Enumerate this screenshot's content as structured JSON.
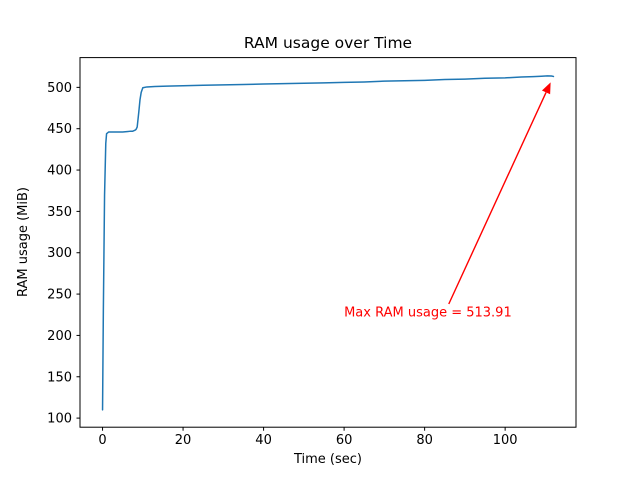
{
  "chart_data": {
    "type": "line",
    "title": "RAM usage over Time",
    "xlabel": "Time (sec)",
    "ylabel": "RAM usage (MiB)",
    "xlim": [
      -5.6,
      117.6
    ],
    "ylim": [
      89,
      536
    ],
    "xticks": [
      0,
      20,
      40,
      60,
      80,
      100
    ],
    "yticks": [
      100,
      150,
      200,
      250,
      300,
      350,
      400,
      450,
      500
    ],
    "grid": false,
    "legend": "none",
    "line_color": "#1f77b4",
    "series": [
      {
        "name": "RAM usage",
        "x": [
          0,
          0.2,
          0.5,
          0.8,
          1.0,
          1.5,
          2,
          3,
          4,
          5,
          6,
          7,
          7.5,
          8,
          8.3,
          8.6,
          9,
          9.3,
          9.6,
          10,
          11,
          13,
          16,
          20,
          25,
          30,
          35,
          40,
          45,
          50,
          55,
          60,
          65,
          70,
          75,
          80,
          85,
          90,
          95,
          100,
          104,
          107,
          109,
          110.5,
          111.5,
          112
        ],
        "y": [
          110,
          230,
          370,
          432,
          444,
          446,
          446,
          446,
          446,
          446,
          446.5,
          447,
          447,
          448,
          449,
          452,
          470,
          485,
          494,
          499.5,
          500.5,
          501,
          501.5,
          502,
          502.5,
          503,
          503.5,
          504,
          504.5,
          505,
          505.5,
          506,
          506.5,
          507.5,
          508,
          508.5,
          509.5,
          510,
          511,
          511.5,
          512.5,
          513,
          513.5,
          513.91,
          513.8,
          513.2
        ]
      }
    ],
    "annotation": {
      "text": "Max RAM usage = 513.91",
      "color": "#ff0000",
      "text_x": 60,
      "text_y": 223,
      "arrow_from_x": 86,
      "arrow_from_y": 238,
      "arrow_to_x": 111.3,
      "arrow_to_y": 506
    }
  }
}
